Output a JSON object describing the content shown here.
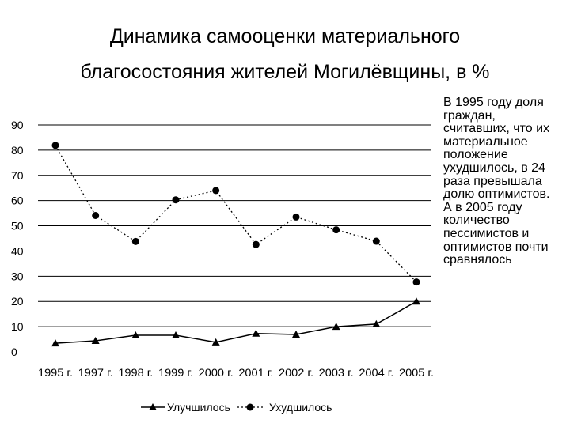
{
  "title_line1": "Динамика самооценки материального",
  "title_line2": "благосостояния жителей Могилёвщины, в %",
  "note_line1": "В 1995 году доля граждан, считавших, что их материальное положение ухудшилось, в 24 раза превышала долю оптимистов.",
  "note_line2": "А в 2005 году количество пессимистов и оптимистов почти сравнялось",
  "chart_data": {
    "type": "line",
    "categories": [
      "1995 г.",
      "1997 г.",
      "1998 г.",
      "1999 г.",
      "2000 г.",
      "2001 г.",
      "2002 г.",
      "2003 г.",
      "2004 г.",
      "2005 г."
    ],
    "series": [
      {
        "name": "Улучшилось",
        "values": [
          3.4,
          4.4,
          6.6,
          6.6,
          3.8,
          7.3,
          6.9,
          10.0,
          11.0,
          20.0
        ],
        "marker": "triangle",
        "line": "solid",
        "color": "#000000"
      },
      {
        "name": "Ухудшилось",
        "values": [
          81.9,
          54.1,
          43.8,
          60.3,
          64.0,
          42.6,
          53.5,
          48.4,
          43.9,
          27.7
        ],
        "marker": "circle",
        "line": "dotted",
        "color": "#000000"
      }
    ],
    "yticks": [
      0,
      10,
      20,
      30,
      40,
      50,
      60,
      70,
      80,
      90
    ],
    "ylim": [
      0,
      90
    ],
    "grid": true,
    "legend": "bottom"
  }
}
